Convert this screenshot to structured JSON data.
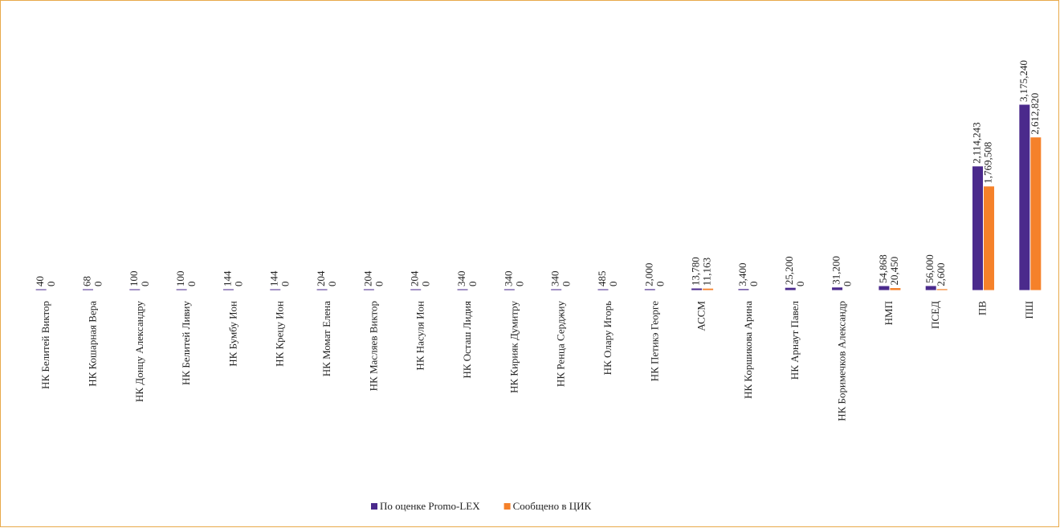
{
  "chart_data": {
    "type": "bar",
    "categories": [
      "НК Белитей Виктор",
      "НК Кошарная Вера",
      "НК Донцу Александру",
      "НК Белитей Ливиу",
      "НК Бумбу Ион",
      "НК Крецу Ион",
      "НК Момат Елена",
      "НК Масляев Виктор",
      "НК Насуля Ион",
      "НК Осташ Лидия",
      "НК Кирияк Думитру",
      "НК Ренца Серджиу",
      "НК Олару Игорь",
      "НК Петикэ Георге",
      "АССМ",
      "НК Коршикова Арина",
      "НК Арнаут Павел",
      "НК Боримечков Александр",
      "НМП",
      "ПСЕД",
      "ПВ",
      "ПШ"
    ],
    "series": [
      {
        "name": "По оценке Promo-LEX",
        "color": "#4b2a8c",
        "values": [
          40,
          68,
          100,
          100,
          144,
          144,
          204,
          204,
          204,
          340,
          340,
          340,
          485,
          2000,
          13780,
          3400,
          25200,
          31200,
          54868,
          56000,
          2114243,
          3175240
        ],
        "value_labels": [
          "40",
          "68",
          "100",
          "100",
          "144",
          "144",
          "204",
          "204",
          "204",
          "340",
          "340",
          "340",
          "485",
          "2,000",
          "13,780",
          "3,400",
          "25,200",
          "31,200",
          "54,868",
          "56,000",
          "2,114,243",
          "3,175,240"
        ]
      },
      {
        "name": "Сообщено в ЦИК",
        "color": "#f5812a",
        "values": [
          0,
          0,
          0,
          0,
          0,
          0,
          0,
          0,
          0,
          0,
          0,
          0,
          0,
          0,
          11163,
          0,
          0,
          0,
          20450,
          2600,
          1769508,
          2612820
        ],
        "value_labels": [
          "0",
          "0",
          "0",
          "0",
          "0",
          "0",
          "0",
          "0",
          "0",
          "0",
          "0",
          "0",
          "0",
          "0",
          "11,163",
          "0",
          "0",
          "0",
          "20,450",
          "2,600",
          "1,769,508",
          "2,612,820"
        ]
      }
    ],
    "ylim": [
      0,
      4500000
    ],
    "grid": false,
    "legend": "bottom"
  }
}
